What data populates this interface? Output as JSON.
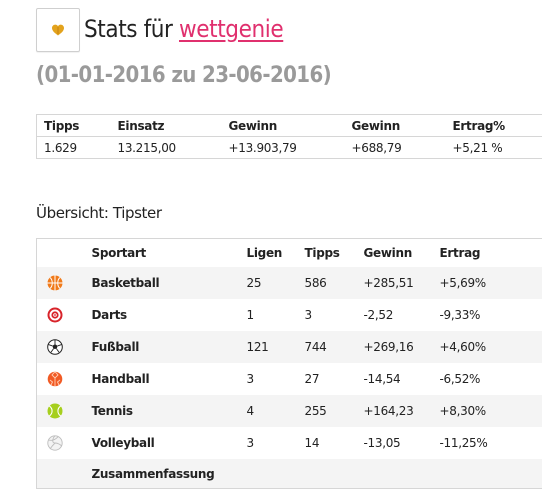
{
  "header": {
    "title_prefix": "Stats für",
    "username": "wettgenie",
    "date_range": "(01-01-2016 zu 23-06-2016)"
  },
  "summary": {
    "columns": [
      "Tipps",
      "Einsatz",
      "Gewinn",
      "Gewinn",
      "Ertrag%"
    ],
    "values": [
      "1.629",
      "13.215,00",
      "+13.903,79",
      "+688,79",
      "+5,21 %"
    ]
  },
  "overview": {
    "heading": "Übersicht: Tipster",
    "columns": [
      "Sportart",
      "Ligen",
      "Tipps",
      "Gewinn",
      "Ertrag"
    ],
    "rows": [
      {
        "icon": "basketball-icon",
        "sport": "Basketball",
        "ligen": "25",
        "tipps": "586",
        "gewinn": "+285,51",
        "ertrag": "+5,69%"
      },
      {
        "icon": "darts-icon",
        "sport": "Darts",
        "ligen": "1",
        "tipps": "3",
        "gewinn": "-2,52",
        "ertrag": "-9,33%"
      },
      {
        "icon": "football-icon",
        "sport": "Fußball",
        "ligen": "121",
        "tipps": "744",
        "gewinn": "+269,16",
        "ertrag": "+4,60%"
      },
      {
        "icon": "handball-icon",
        "sport": "Handball",
        "ligen": "3",
        "tipps": "27",
        "gewinn": "-14,54",
        "ertrag": "-6,52%"
      },
      {
        "icon": "tennis-icon",
        "sport": "Tennis",
        "ligen": "4",
        "tipps": "255",
        "gewinn": "+164,23",
        "ertrag": "+8,30%"
      },
      {
        "icon": "volleyball-icon",
        "sport": "Volleyball",
        "ligen": "3",
        "tipps": "14",
        "gewinn": "-13,05",
        "ertrag": "-11,25%"
      }
    ],
    "footer_label": "Zusammenfassung"
  },
  "colors": {
    "link": "#e0306e",
    "subtitle": "#9a9a9a",
    "border": "#d6d6d6",
    "stripe": "#f4f4f4"
  }
}
